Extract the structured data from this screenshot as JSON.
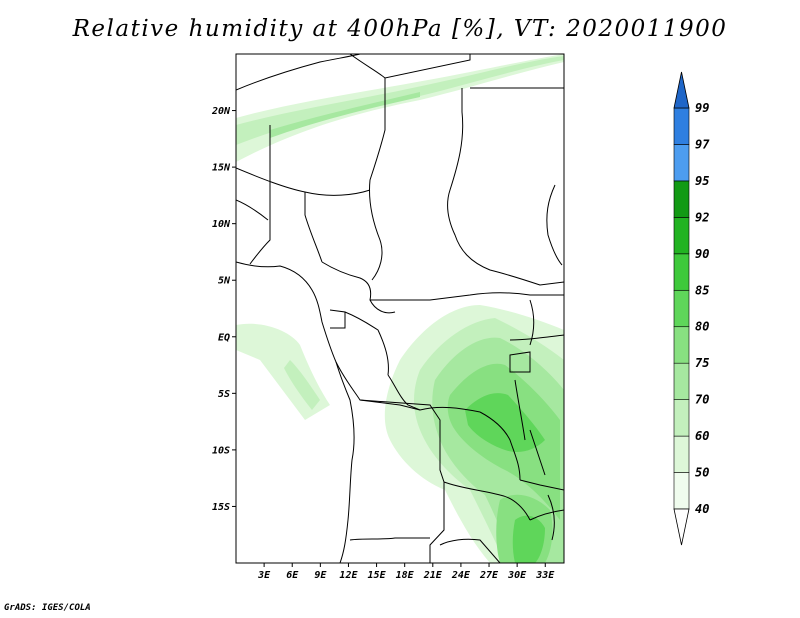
{
  "title": "Relative humidity at 400hPa [%], VT: 2020011900",
  "footer": "GrADS: IGES/COLA",
  "map": {
    "lon_range": [
      0,
      35
    ],
    "lat_range": [
      -20,
      25
    ],
    "lat_ticks": [
      {
        "label": "20N",
        "value": 20
      },
      {
        "label": "15N",
        "value": 15
      },
      {
        "label": "10N",
        "value": 10
      },
      {
        "label": "5N",
        "value": 5
      },
      {
        "label": "EQ",
        "value": 0
      },
      {
        "label": "5S",
        "value": -5
      },
      {
        "label": "10S",
        "value": -10
      },
      {
        "label": "15S",
        "value": -15
      }
    ],
    "lon_ticks": [
      {
        "label": "3E",
        "value": 3
      },
      {
        "label": "6E",
        "value": 6
      },
      {
        "label": "9E",
        "value": 9
      },
      {
        "label": "12E",
        "value": 12
      },
      {
        "label": "15E",
        "value": 15
      },
      {
        "label": "18E",
        "value": 18
      },
      {
        "label": "21E",
        "value": 21
      },
      {
        "label": "24E",
        "value": 24
      },
      {
        "label": "27E",
        "value": 27
      },
      {
        "label": "30E",
        "value": 30
      },
      {
        "label": "33E",
        "value": 33
      }
    ]
  },
  "colorbar": {
    "segments": [
      {
        "from": 40,
        "to": 50,
        "color": "#f0fcee"
      },
      {
        "from": 50,
        "to": 60,
        "color": "#ddf7d8"
      },
      {
        "from": 60,
        "to": 70,
        "color": "#c3f0bd"
      },
      {
        "from": 70,
        "to": 75,
        "color": "#a6e8a0"
      },
      {
        "from": 75,
        "to": 80,
        "color": "#88e081"
      },
      {
        "from": 80,
        "to": 85,
        "color": "#5fd65a"
      },
      {
        "from": 85,
        "to": 90,
        "color": "#3ec93b"
      },
      {
        "from": 90,
        "to": 92,
        "color": "#22b322"
      },
      {
        "from": 92,
        "to": 95,
        "color": "#129a14"
      },
      {
        "from": 95,
        "to": 97,
        "color": "#4d9df0"
      },
      {
        "from": 97,
        "to": 99,
        "color": "#2f7fe0"
      },
      {
        "from": 99,
        "to": 100,
        "color": "#1f66c8"
      }
    ],
    "labels": [
      "99",
      "97",
      "95",
      "92",
      "90",
      "85",
      "80",
      "75",
      "70",
      "60",
      "50",
      "40"
    ]
  }
}
